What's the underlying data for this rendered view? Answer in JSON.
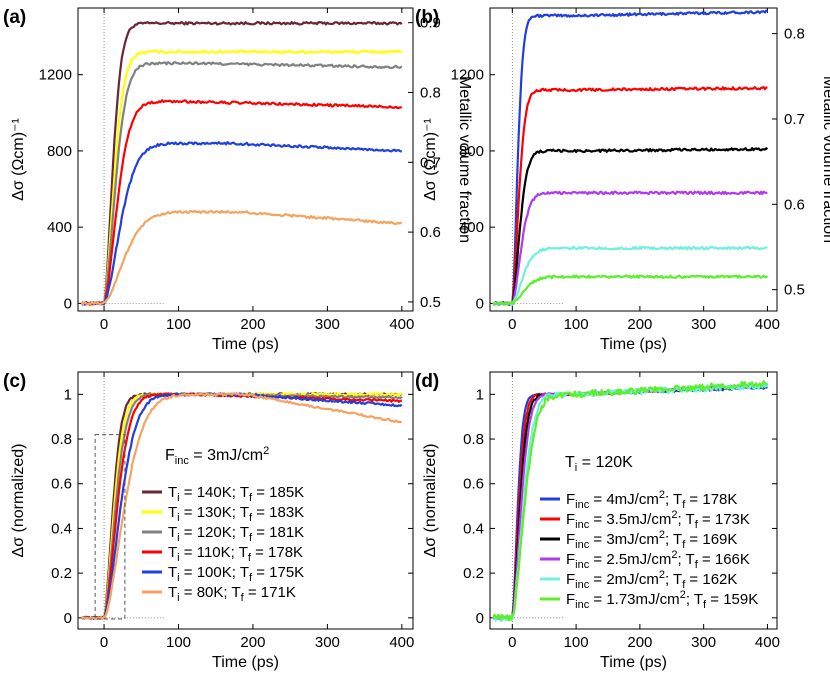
{
  "chart_data": [
    {
      "panel": "(a)",
      "type": "line",
      "xlabel": "Time (ps)",
      "ylabel": "Δσ (Ωcm)⁻¹",
      "y2label": "Metallic volume fraction",
      "xlim": [
        -35,
        415
      ],
      "ylim": [
        -40,
        1550
      ],
      "xticks": [
        0,
        100,
        200,
        300,
        400
      ],
      "yticks": [
        0,
        400,
        800,
        1200
      ],
      "y2lim": [
        0.487,
        0.921
      ],
      "y2ticks": [
        0.5,
        0.6,
        0.7,
        0.8,
        0.9
      ],
      "series": [
        {
          "color": "#6b2533",
          "plateau": 1470,
          "rise": 35,
          "peak_at": 400,
          "end": 1470
        },
        {
          "color": "#ffff00",
          "plateau": 1320,
          "rise": 40,
          "peak_at": 400,
          "end": 1320
        },
        {
          "color": "#808080",
          "plateau": 1260,
          "rise": 45,
          "peak_at": 120,
          "end": 1240
        },
        {
          "color": "#ff0000",
          "plateau": 1060,
          "rise": 52,
          "peak_at": 100,
          "end": 1030
        },
        {
          "color": "#1f3fe0",
          "plateau": 840,
          "rise": 65,
          "peak_at": 170,
          "end": 800
        },
        {
          "color": "#f4a460",
          "plateau": 480,
          "rise": 80,
          "peak_at": 180,
          "end": 420
        }
      ]
    },
    {
      "panel": "(b)",
      "type": "line",
      "xlabel": "Time (ps)",
      "ylabel": "Δσ (Ωcm)⁻¹",
      "y2label": "Metallic volume fraction",
      "xlim": [
        -35,
        415
      ],
      "ylim": [
        -40,
        1550
      ],
      "xticks": [
        0,
        100,
        200,
        300,
        400
      ],
      "yticks": [
        0,
        400,
        800,
        1200
      ],
      "y2lim": [
        0.475,
        0.83
      ],
      "y2ticks": [
        0.5,
        0.6,
        0.7,
        0.8
      ],
      "series": [
        {
          "color": "#1f3fe0",
          "plateau": 1510,
          "rise": 25,
          "peak_at": 400,
          "end": 1530
        },
        {
          "color": "#ff0000",
          "plateau": 1120,
          "rise": 30,
          "peak_at": 400,
          "end": 1130
        },
        {
          "color": "#000000",
          "plateau": 800,
          "rise": 35,
          "peak_at": 400,
          "end": 810
        },
        {
          "color": "#b03aee",
          "plateau": 580,
          "rise": 40,
          "peak_at": 400,
          "end": 580
        },
        {
          "color": "#6ff0e0",
          "plateau": 290,
          "rise": 50,
          "peak_at": 400,
          "end": 290
        },
        {
          "color": "#5cf02a",
          "plateau": 140,
          "rise": 55,
          "peak_at": 400,
          "end": 140
        }
      ]
    },
    {
      "panel": "(c)",
      "type": "line",
      "xlabel": "Time (ps)",
      "ylabel": "Δσ (normalized)",
      "xlim": [
        -35,
        415
      ],
      "ylim": [
        -0.05,
        1.1
      ],
      "xticks": [
        0,
        100,
        200,
        300,
        400
      ],
      "yticks": [
        0,
        0.2,
        0.4,
        0.6,
        0.8,
        1
      ],
      "annotation": "F",
      "annotation_sub": "inc",
      "annotation_rest": " = 3mJ/cm",
      "annotation_sup": "2",
      "legend": [
        {
          "color": "#6b2533",
          "ti": "140K",
          "tf": "185K"
        },
        {
          "color": "#ffff00",
          "ti": "130K",
          "tf": "183K"
        },
        {
          "color": "#808080",
          "ti": "120K",
          "tf": "181K"
        },
        {
          "color": "#ff0000",
          "ti": "110K",
          "tf": "178K"
        },
        {
          "color": "#1f3fe0",
          "ti": "100K",
          "tf": "175K"
        },
        {
          "color": "#f4a460",
          "ti": "80K",
          "tf": "171K"
        }
      ],
      "series": [
        {
          "color": "#6b2533",
          "rise": 35,
          "peak_at": 400,
          "end": 1.0
        },
        {
          "color": "#ffff00",
          "rise": 40,
          "peak_at": 400,
          "end": 1.0
        },
        {
          "color": "#808080",
          "rise": 45,
          "peak_at": 150,
          "end": 0.985
        },
        {
          "color": "#ff0000",
          "rise": 52,
          "peak_at": 120,
          "end": 0.97
        },
        {
          "color": "#1f3fe0",
          "rise": 65,
          "peak_at": 180,
          "end": 0.95
        },
        {
          "color": "#f4a460",
          "rise": 80,
          "peak_at": 190,
          "end": 0.875
        }
      ]
    },
    {
      "panel": "(d)",
      "type": "line",
      "xlabel": "Time (ps)",
      "ylabel": "Δσ (normalized)",
      "xlim": [
        -35,
        415
      ],
      "ylim": [
        -0.05,
        1.1
      ],
      "xticks": [
        0,
        100,
        200,
        300,
        400
      ],
      "yticks": [
        0,
        0.2,
        0.4,
        0.6,
        0.8,
        1
      ],
      "annotation": "T",
      "annotation_sub": "i",
      "annotation_rest": " = 120K",
      "legend": [
        {
          "color": "#1f3fe0",
          "f": "4mJ/cm",
          "tf": "178K"
        },
        {
          "color": "#ff0000",
          "f": "3.5mJ/cm",
          "tf": "173K"
        },
        {
          "color": "#000000",
          "f": "3mJ/cm",
          "tf": "169K"
        },
        {
          "color": "#b03aee",
          "f": "2.5mJ/cm",
          "tf": "166K"
        },
        {
          "color": "#6ff0e0",
          "f": "2mJ/cm",
          "tf": "162K"
        },
        {
          "color": "#5cf02a",
          "f": "1.73mJ/cm",
          "tf": "159K"
        }
      ],
      "series": [
        {
          "color": "#1f3fe0",
          "rise": 25,
          "peak_at": 400,
          "end": 1.03
        },
        {
          "color": "#ff0000",
          "rise": 30,
          "peak_at": 400,
          "end": 1.04
        },
        {
          "color": "#000000",
          "rise": 35,
          "peak_at": 400,
          "end": 1.04
        },
        {
          "color": "#b03aee",
          "rise": 40,
          "peak_at": 400,
          "end": 1.04
        },
        {
          "color": "#6ff0e0",
          "rise": 50,
          "peak_at": 400,
          "end": 1.04
        },
        {
          "color": "#5cf02a",
          "rise": 55,
          "peak_at": 400,
          "end": 1.05
        }
      ]
    }
  ]
}
